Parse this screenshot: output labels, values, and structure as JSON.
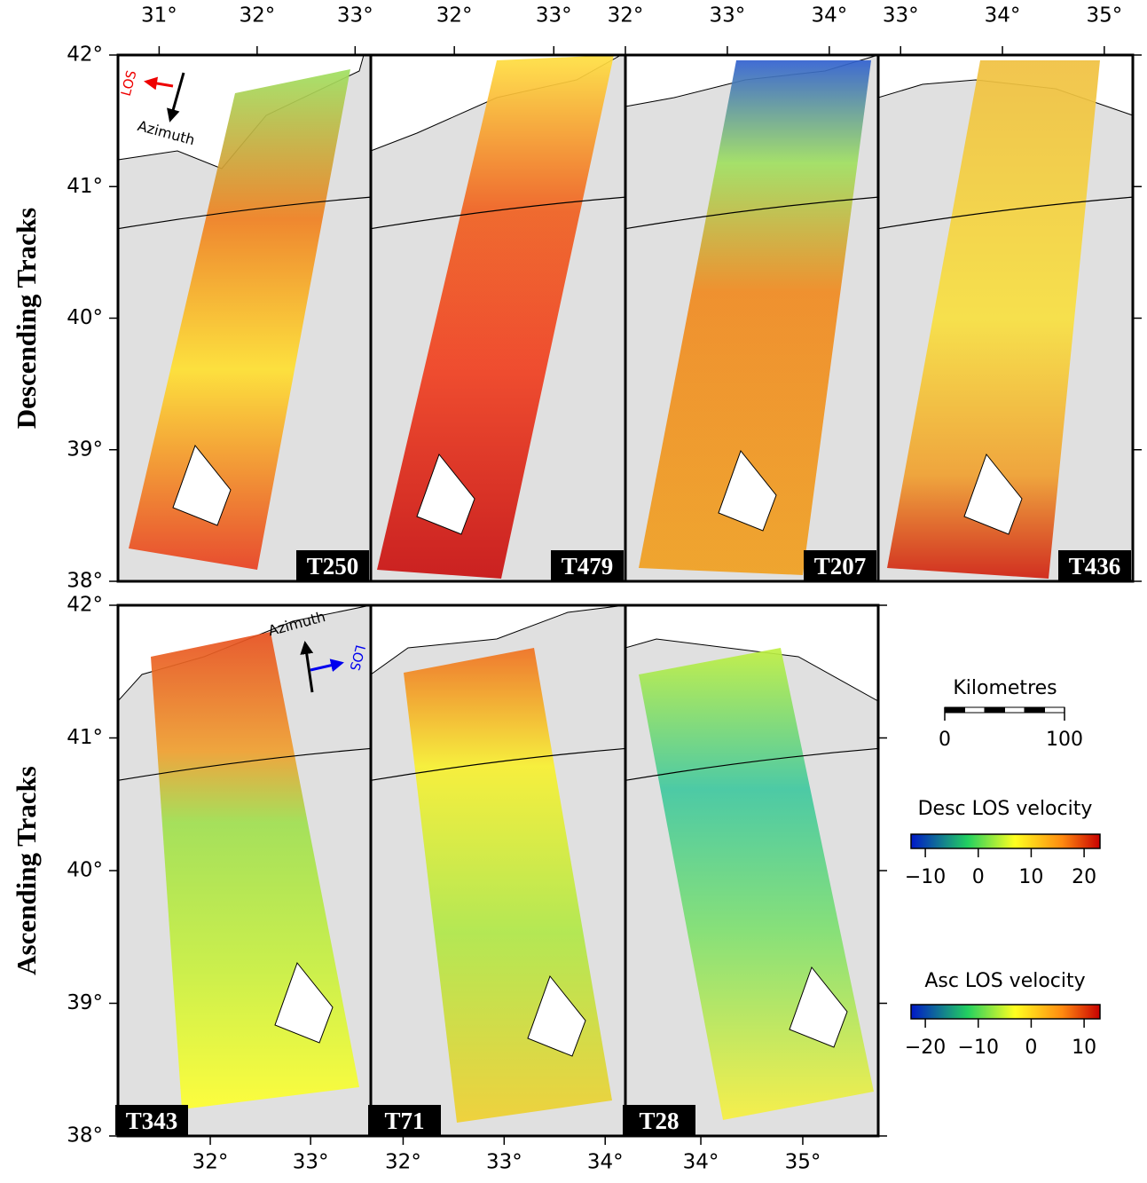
{
  "rows": [
    {
      "label": "Descending Tracks",
      "lat_range": [
        38,
        42
      ],
      "lat_ticks": [
        {
          "value": 42,
          "label": "42°"
        },
        {
          "value": 41,
          "label": "41°"
        },
        {
          "value": 40,
          "label": "40°"
        },
        {
          "value": 39,
          "label": "39°"
        },
        {
          "value": 38,
          "label": "38°"
        }
      ],
      "panels": [
        {
          "track": "T250",
          "lon_range": [
            30.58,
            33.16
          ],
          "lon_ticks": [
            {
              "value": 31,
              "label": "31°"
            },
            {
              "value": 32,
              "label": "32°"
            },
            {
              "value": 33,
              "label": "33°"
            }
          ],
          "los": "LOS",
          "azimuth": "Azimuth"
        },
        {
          "track": "T479",
          "lon_range": [
            31.16,
            33.72
          ],
          "lon_ticks": [
            {
              "value": 32,
              "label": "32°"
            },
            {
              "value": 33,
              "label": "33°"
            }
          ]
        },
        {
          "track": "T207",
          "lon_range": [
            32.0,
            34.48
          ],
          "lon_ticks": [
            {
              "value": 32,
              "label": "32°"
            },
            {
              "value": 33,
              "label": "33°"
            },
            {
              "value": 34,
              "label": "34°"
            }
          ]
        },
        {
          "track": "T436",
          "lon_range": [
            32.78,
            35.28
          ],
          "lon_ticks": [
            {
              "value": 33,
              "label": "33°"
            },
            {
              "value": 34,
              "label": "34°"
            },
            {
              "value": 35,
              "label": "35°"
            }
          ]
        }
      ]
    },
    {
      "label": "Ascending Tracks",
      "lat_range": [
        38,
        42
      ],
      "lat_ticks": [
        {
          "value": 42,
          "label": "42°"
        },
        {
          "value": 41,
          "label": "41°"
        },
        {
          "value": 40,
          "label": "40°"
        },
        {
          "value": 39,
          "label": "39°"
        },
        {
          "value": 38,
          "label": "38°"
        }
      ],
      "panels": [
        {
          "track": "T343",
          "lon_range": [
            31.08,
            33.6
          ],
          "lon_ticks": [
            {
              "value": 32,
              "label": "32°"
            },
            {
              "value": 33,
              "label": "33°"
            }
          ],
          "los": "LOS",
          "azimuth": "Azimuth"
        },
        {
          "track": "T71",
          "lon_range": [
            31.68,
            34.2
          ],
          "lon_ticks": [
            {
              "value": 32,
              "label": "32°"
            },
            {
              "value": 33,
              "label": "33°"
            },
            {
              "value": 34,
              "label": "34°"
            }
          ]
        },
        {
          "track": "T28",
          "lon_range": [
            33.26,
            35.74
          ],
          "lon_ticks": [
            {
              "value": 34,
              "label": "34°"
            },
            {
              "value": 35,
              "label": "35°"
            }
          ]
        }
      ]
    }
  ],
  "legend": {
    "scale": {
      "title": "Kilometres",
      "range": [
        0,
        100
      ],
      "ticks": [
        0,
        100
      ]
    },
    "colorbars": [
      {
        "title": "Desc LOS velocity",
        "range": [
          -12.7,
          23
        ],
        "ticks": [
          {
            "value": -10,
            "label": "−10"
          },
          {
            "value": 0,
            "label": "0"
          },
          {
            "value": 10,
            "label": "10"
          },
          {
            "value": 20,
            "label": "20"
          }
        ]
      },
      {
        "title": "Asc LOS velocity",
        "range": [
          -22.7,
          13
        ],
        "ticks": [
          {
            "value": -20,
            "label": "−20"
          },
          {
            "value": -10,
            "label": "−10"
          },
          {
            "value": 0,
            "label": "0"
          },
          {
            "value": 10,
            "label": "10"
          }
        ]
      }
    ]
  }
}
